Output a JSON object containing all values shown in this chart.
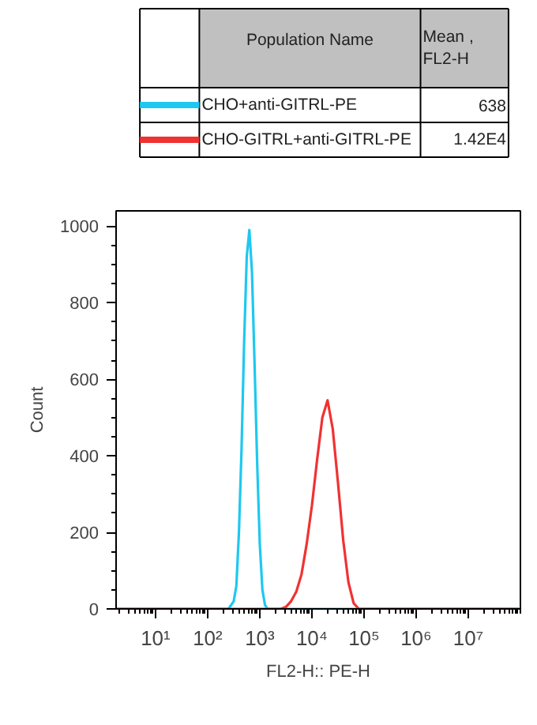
{
  "chart_data": {
    "type": "line",
    "xlabel": "FL2-H:: PE-H",
    "ylabel": "Count",
    "legend": "top",
    "legend_title": "Population Name",
    "log": "x",
    "grid": false,
    "marker": "none",
    "line_style": "solid",
    "annotations": [
      "Mean , FL2-H",
      "638",
      "1.42E4"
    ],
    "xlim": [
      1.75,
      100000000
    ],
    "ylim": [
      0,
      1040
    ],
    "xticks": [
      {
        "value": 10,
        "label": "10¹"
      },
      {
        "value": 100,
        "label": "10²"
      },
      {
        "value": 1000,
        "label": "10³"
      },
      {
        "value": 10000,
        "label": "10⁴"
      },
      {
        "value": 100000,
        "label": "10⁵"
      },
      {
        "value": 1000000,
        "label": "10⁶"
      },
      {
        "value": 10000000,
        "label": "10⁷"
      }
    ],
    "yticks": [
      0,
      200,
      400,
      600,
      800,
      1000
    ],
    "series": [
      {
        "name": "CHO+anti-GITRL-PE",
        "color": "#1ec8f0",
        "x": [
          1.75,
          251,
          316,
          355,
          398,
          447,
          501,
          562,
          631,
          708,
          794,
          891,
          1000,
          1122,
          1259,
          1413,
          100000000
        ],
        "values": [
          0,
          0,
          20,
          60,
          200,
          420,
          700,
          920,
          990,
          880,
          640,
          380,
          170,
          50,
          10,
          0,
          0
        ]
      },
      {
        "name": "CHO-GITRL+anti-GITRL-PE",
        "color": "#f03232",
        "x": [
          1.75,
          2512,
          3162,
          3981,
          5012,
          6310,
          7943,
          10000,
          12589,
          15849,
          19953,
          25119,
          31623,
          39811,
          50119,
          63096,
          79433,
          100000000
        ],
        "values": [
          0,
          0,
          5,
          20,
          45,
          90,
          170,
          270,
          390,
          500,
          545,
          470,
          330,
          180,
          70,
          15,
          0,
          0
        ]
      }
    ]
  }
}
